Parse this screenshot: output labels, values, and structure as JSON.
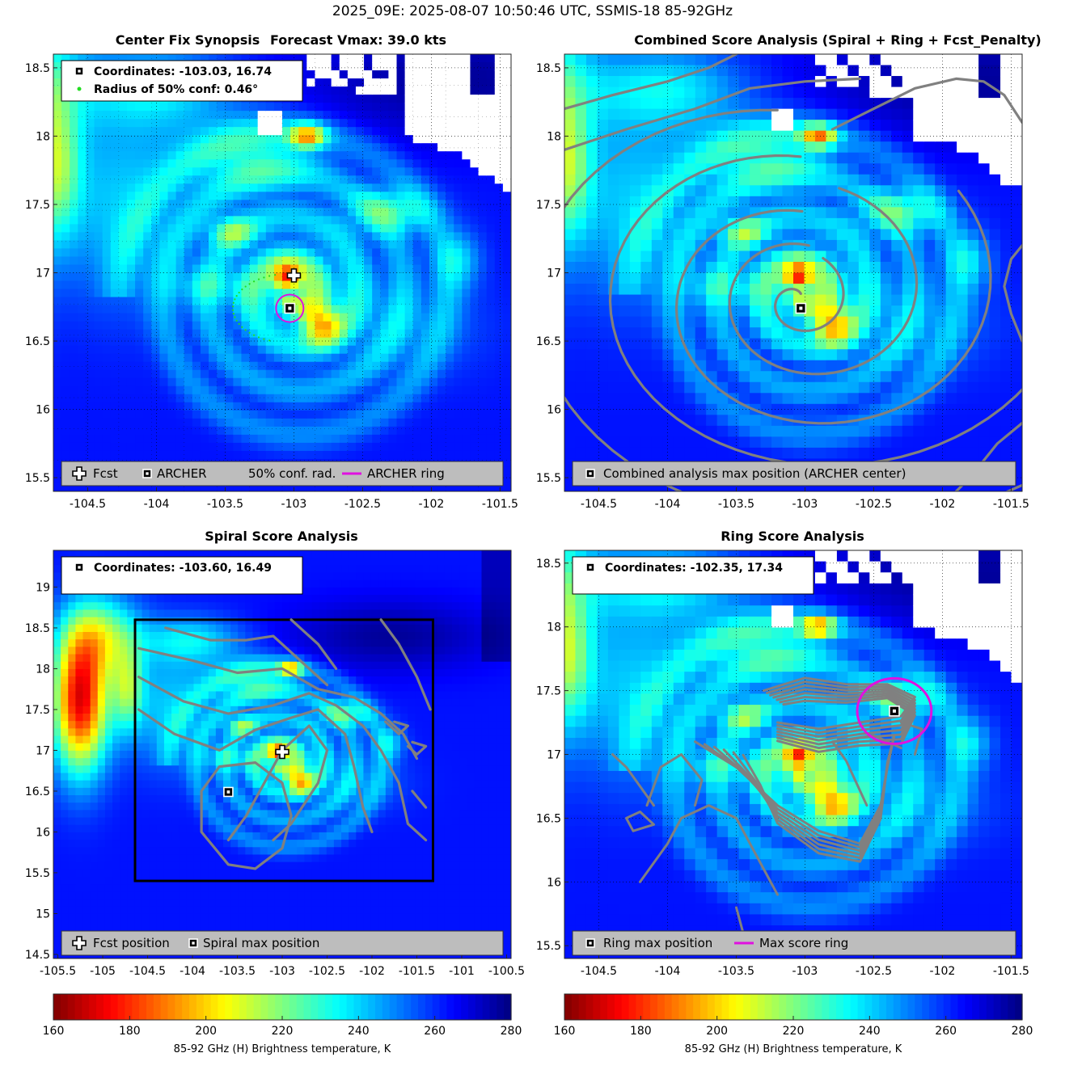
{
  "figure_title": "2025_09E: 2025-08-07 10:50:46 UTC, SSMIS-18 85-92GHz",
  "chart_data": [
    {
      "type": "heatmap",
      "id": "center-fix",
      "title": "Center Fix Synopsis",
      "subtitle": "Forecast Vmax: 39.0 kts",
      "xlim": [
        -104.75,
        -101.42
      ],
      "ylim": [
        15.4,
        18.6
      ],
      "xticks": [
        -104.5,
        -104,
        -103.5,
        -103,
        -102.5,
        -102,
        -101.5
      ],
      "yticks": [
        15.5,
        16,
        16.5,
        17,
        17.5,
        18,
        18.5
      ],
      "xtick_labels": [
        "-104.5",
        "-104",
        "-103.5",
        "-103",
        "-102.5",
        "-102",
        "-101.5"
      ],
      "ytick_labels": [
        "15.5",
        "16",
        "16.5",
        "17",
        "17.5",
        "18",
        "18.5"
      ],
      "grid": true,
      "info_box": [
        "Coordinates: -103.03, 16.74",
        "Radius of 50% conf: 0.46°"
      ],
      "legend": [
        "Fcst",
        "ARCHER",
        "50% conf. rad.",
        "ARCHER ring"
      ],
      "legend_placement": "bottom",
      "fcst_position": [
        -103.0,
        16.98
      ],
      "archer_center": [
        -103.03,
        16.74
      ],
      "confidence_radius_deg": 0.46,
      "archer_ring_radius_deg": 0.1,
      "colors": {
        "ring": "#e010e0",
        "confidence": "#22dd22"
      }
    },
    {
      "type": "heatmap",
      "id": "combined",
      "title": "Combined Score Analysis (Spiral + Ring + Fcst_Penalty)",
      "xlim": [
        -104.75,
        -101.42
      ],
      "ylim": [
        15.4,
        18.6
      ],
      "xticks": [
        -104.5,
        -104,
        -103.5,
        -103,
        -102.5,
        -102,
        -101.5
      ],
      "yticks": [
        15.5,
        16,
        16.5,
        17,
        17.5,
        18,
        18.5
      ],
      "xtick_labels": [
        "-104.5",
        "-104",
        "-103.5",
        "-103",
        "-102.5",
        "-102",
        "-101.5"
      ],
      "ytick_labels": [
        "15.5",
        "16",
        "16.5",
        "17",
        "17.5",
        "18",
        "18.5"
      ],
      "grid": true,
      "legend": [
        "Combined analysis max position (ARCHER center)"
      ],
      "legend_placement": "bottom",
      "max_position": [
        -103.03,
        16.74
      ]
    },
    {
      "type": "heatmap",
      "id": "spiral",
      "title": "Spiral Score Analysis",
      "xlim": [
        -105.55,
        -100.45
      ],
      "ylim": [
        14.45,
        19.45
      ],
      "xticks": [
        -105.5,
        -105,
        -104.5,
        -104,
        -103.5,
        -103,
        -102.5,
        -102,
        -101.5,
        -101,
        -100.5
      ],
      "yticks": [
        14.5,
        15,
        15.5,
        16,
        16.5,
        17,
        17.5,
        18,
        18.5,
        19
      ],
      "xtick_labels": [
        "-105.5",
        "-105",
        "-104.5",
        "-104",
        "-103.5",
        "-103",
        "-102.5",
        "-102",
        "-101.5",
        "-101",
        "-100.5"
      ],
      "ytick_labels": [
        "14.5",
        "15",
        "15.5",
        "16",
        "16.5",
        "17",
        "17.5",
        "18",
        "18.5",
        "19"
      ],
      "grid": false,
      "info_box": [
        "Coordinates: -103.60, 16.49"
      ],
      "legend": [
        "Fcst position",
        "Spiral max position"
      ],
      "legend_placement": "bottom",
      "fcst_position": [
        -103.0,
        16.98
      ],
      "max_position": [
        -103.6,
        16.49
      ],
      "search_box": [
        -104.64,
        -101.32,
        15.4,
        18.6
      ]
    },
    {
      "type": "heatmap",
      "id": "ring",
      "title": "Ring Score Analysis",
      "xlim": [
        -104.75,
        -101.42
      ],
      "ylim": [
        15.4,
        18.6
      ],
      "xticks": [
        -104.5,
        -104,
        -103.5,
        -103,
        -102.5,
        -102,
        -101.5
      ],
      "yticks": [
        15.5,
        16,
        16.5,
        17,
        17.5,
        18,
        18.5
      ],
      "xtick_labels": [
        "-104.5",
        "-104",
        "-103.5",
        "-103",
        "-102.5",
        "-102",
        "-101.5"
      ],
      "ytick_labels": [
        "15.5",
        "16",
        "16.5",
        "17",
        "17.5",
        "18",
        "18.5"
      ],
      "grid": true,
      "info_box": [
        "Coordinates: -102.35, 17.34"
      ],
      "legend": [
        "Ring max position",
        "Max score ring"
      ],
      "legend_placement": "bottom",
      "max_position": [
        -102.35,
        17.34
      ],
      "max_ring_radius_deg": 0.27,
      "colors": {
        "ring": "#e010e0"
      }
    }
  ],
  "colorbar": {
    "label": "85-92 GHz (H) Brightness temperature, K",
    "range": [
      160,
      280
    ],
    "ticks": [
      160,
      180,
      200,
      220,
      240,
      260,
      280
    ],
    "tick_labels": [
      "160",
      "180",
      "200",
      "220",
      "240",
      "260",
      "280"
    ],
    "colormap": "jet-reversed"
  },
  "colors": {
    "contour": "#808080",
    "legend_bg": "#bdbdbd"
  }
}
